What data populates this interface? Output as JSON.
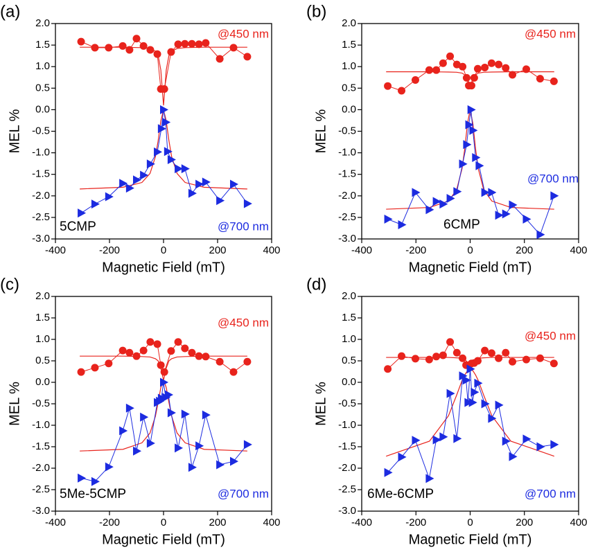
{
  "chart_data": [
    {
      "type": "line",
      "panel_label": "(a)",
      "sample_label": "5CMP",
      "xlabel": "Magnetic Field (mT)",
      "ylabel": "MEL %",
      "xlim": [
        -400,
        400
      ],
      "xticks": [
        -400,
        -200,
        0,
        200,
        400
      ],
      "ylim": [
        -3,
        2
      ],
      "yticks": [
        {
          "value": 2,
          "label": "2.0"
        },
        {
          "value": 1.5,
          "label": "1.5"
        },
        {
          "value": 1,
          "label": "1.0"
        },
        {
          "value": 0.5,
          "label": "0.5"
        },
        {
          "value": 0,
          "label": "0.0"
        },
        {
          "value": -0.5,
          "label": "-0.5"
        },
        {
          "value": -1,
          "label": "-1.0"
        },
        {
          "value": -1.5,
          "label": "-1.5"
        },
        {
          "value": -2,
          "label": "-2.0"
        },
        {
          "value": -2.5,
          "label": "-2.5"
        },
        {
          "value": -3,
          "label": "-3.0"
        }
      ],
      "series": [
        {
          "name": "@450 nm",
          "color": "#e8231c",
          "marker": "circle",
          "x": [
            -305,
            -254,
            -203,
            -151,
            -126,
            -100,
            -74,
            -49,
            -23,
            -10,
            3,
            28,
            54,
            79,
            105,
            131,
            156,
            208,
            259,
            310
          ],
          "values": [
            1.58,
            1.44,
            1.44,
            1.48,
            1.39,
            1.65,
            1.48,
            1.39,
            1.29,
            0.48,
            0.48,
            1.34,
            1.52,
            1.53,
            1.53,
            1.52,
            1.55,
            1.18,
            1.44,
            1.23
          ]
        },
        {
          "name": "@700 nm",
          "color": "#1c2be0",
          "marker": "triangle",
          "x": [
            -305,
            -254,
            -203,
            -151,
            -126,
            -100,
            -74,
            -49,
            -23,
            -8,
            0,
            8,
            15,
            28,
            54,
            79,
            105,
            131,
            156,
            208,
            259,
            310
          ],
          "values": [
            -2.4,
            -2.19,
            -2.02,
            -1.71,
            -1.82,
            -1.63,
            -1.52,
            -1.26,
            -0.98,
            -0.44,
            0,
            -0.29,
            -0.97,
            -1.16,
            -1.37,
            -1.37,
            -1.94,
            -1.73,
            -1.68,
            -2.11,
            -1.73,
            -2.18
          ]
        },
        {
          "color": "#e8231c",
          "marker": "none",
          "x": [
            -310,
            -150,
            -80,
            -50,
            -30,
            -20,
            -10,
            0,
            10,
            20,
            30,
            50,
            80,
            150,
            310
          ],
          "values": [
            1.45,
            1.45,
            1.44,
            1.42,
            1.36,
            1.26,
            0.92,
            0.1,
            0.92,
            1.26,
            1.36,
            1.42,
            1.44,
            1.45,
            1.45
          ]
        },
        {
          "color": "#e8231c",
          "marker": "none",
          "x": [
            -310,
            -150,
            -80,
            -50,
            -30,
            -20,
            -10,
            0,
            10,
            20,
            30,
            50,
            80,
            150,
            310
          ],
          "values": [
            -1.84,
            -1.8,
            -1.69,
            -1.48,
            -1.09,
            -0.72,
            -0.26,
            0,
            -0.26,
            -0.72,
            -1.09,
            -1.48,
            -1.69,
            -1.8,
            -1.84
          ]
        }
      ]
    },
    {
      "type": "line",
      "panel_label": "(b)",
      "sample_label": "6CMP",
      "xlabel": "Magnetic Field (mT)",
      "ylabel": "MEL %",
      "xlim": [
        -400,
        400
      ],
      "xticks": [
        -400,
        -200,
        0,
        200,
        400
      ],
      "ylim": [
        -3,
        2
      ],
      "yticks": [
        {
          "value": 2,
          "label": "2.0"
        },
        {
          "value": 1.5,
          "label": "1.5"
        },
        {
          "value": 1,
          "label": "1.0"
        },
        {
          "value": 0.5,
          "label": "0.5"
        },
        {
          "value": 0,
          "label": "0.0"
        },
        {
          "value": -0.5,
          "label": "-0.5"
        },
        {
          "value": -1,
          "label": "-1.0"
        },
        {
          "value": -1.5,
          "label": "-1.5"
        },
        {
          "value": -2,
          "label": "-2.0"
        },
        {
          "value": -2.5,
          "label": "-2.5"
        },
        {
          "value": -3,
          "label": "-3.0"
        }
      ],
      "series": [
        {
          "name": "@450 nm",
          "color": "#e8231c",
          "marker": "circle",
          "x": [
            -304,
            -253,
            -202,
            -151,
            -125,
            -100,
            -74,
            -49,
            -28,
            -13,
            -5,
            5,
            15,
            28,
            54,
            79,
            105,
            131,
            156,
            207,
            258,
            309
          ],
          "values": [
            0.55,
            0.44,
            0.69,
            0.92,
            0.92,
            1.08,
            1.24,
            1.05,
            1,
            0.74,
            0.56,
            0.56,
            0.74,
            0.95,
            0.98,
            1.08,
            1.05,
            0.97,
            0.81,
            0.94,
            0.72,
            0.66
          ]
        },
        {
          "name": "@700 nm",
          "color": "#1c2be0",
          "marker": "triangle",
          "x": [
            -304,
            -253,
            -202,
            -151,
            -125,
            -100,
            -74,
            -49,
            -28,
            -13,
            -5,
            3,
            10,
            20,
            33,
            54,
            79,
            105,
            131,
            156,
            207,
            258,
            309
          ],
          "values": [
            -2.54,
            -2.67,
            -1.92,
            -2.32,
            -2.13,
            -2.19,
            -2.06,
            -1.9,
            -1.26,
            -0.81,
            -0.35,
            0,
            -0.48,
            -1.11,
            -1.3,
            -1.92,
            -1.92,
            -2.45,
            -2.42,
            -2.21,
            -2.54,
            -2.9,
            -2
          ]
        },
        {
          "color": "#e8231c",
          "marker": "none",
          "x": [
            -310,
            -150,
            -80,
            -50,
            -30,
            -20,
            -10,
            0,
            10,
            20,
            30,
            50,
            80,
            150,
            310
          ],
          "values": [
            0.88,
            0.88,
            0.875,
            0.87,
            0.85,
            0.81,
            0.72,
            0.55,
            0.72,
            0.81,
            0.85,
            0.87,
            0.875,
            0.88,
            0.88
          ]
        },
        {
          "color": "#e8231c",
          "marker": "none",
          "x": [
            -310,
            -150,
            -80,
            -50,
            -30,
            -20,
            -10,
            0,
            10,
            20,
            30,
            50,
            80,
            150,
            310
          ],
          "values": [
            -2.31,
            -2.27,
            -2.12,
            -1.86,
            -1.37,
            -0.91,
            -0.32,
            0,
            -0.32,
            -0.91,
            -1.37,
            -1.86,
            -2.12,
            -2.27,
            -2.31
          ]
        }
      ]
    },
    {
      "type": "line",
      "panel_label": "(c)",
      "sample_label": "5Me-5CMP",
      "xlabel": "Magnetic Field (mT)",
      "ylabel": "MEL %",
      "xlim": [
        -400,
        400
      ],
      "xticks": [
        -400,
        -200,
        0,
        200,
        400
      ],
      "ylim": [
        -3,
        2
      ],
      "yticks": [
        {
          "value": 2,
          "label": "2.0"
        },
        {
          "value": 1.5,
          "label": "1.5"
        },
        {
          "value": 1,
          "label": "1.0"
        },
        {
          "value": 0.5,
          "label": "0.5"
        },
        {
          "value": 0,
          "label": "0.0"
        },
        {
          "value": -0.5,
          "label": "-0.5"
        },
        {
          "value": -1,
          "label": "-1.0"
        },
        {
          "value": -1.5,
          "label": "-1.5"
        },
        {
          "value": -2,
          "label": "-2.0"
        },
        {
          "value": -2.5,
          "label": "-2.5"
        },
        {
          "value": -3,
          "label": "-3.0"
        }
      ],
      "series": [
        {
          "name": "@450 nm",
          "color": "#e8231c",
          "marker": "circle",
          "x": [
            -305,
            -254,
            -203,
            -151,
            -126,
            -100,
            -74,
            -49,
            -23,
            -10,
            3,
            28,
            54,
            79,
            105,
            131,
            156,
            208,
            259,
            310
          ],
          "values": [
            0.24,
            0.34,
            0.44,
            0.74,
            0.69,
            0.61,
            0.74,
            0.94,
            0.89,
            0.4,
            0.24,
            0.73,
            0.94,
            0.79,
            0.69,
            0.61,
            0.6,
            0.48,
            0.24,
            0.48
          ]
        },
        {
          "name": "@700 nm",
          "color": "#1c2be0",
          "marker": "triangle",
          "x": [
            -305,
            -254,
            -203,
            -151,
            -126,
            -100,
            -74,
            -49,
            -23,
            -15,
            -8,
            0,
            8,
            18,
            28,
            54,
            79,
            105,
            131,
            156,
            208,
            259,
            310
          ],
          "values": [
            -2.23,
            -2.31,
            -1.97,
            -1.13,
            -0.6,
            -1.6,
            -0.81,
            -1.42,
            -0.47,
            -0.44,
            -0.37,
            0,
            -0.35,
            -0.29,
            -0.71,
            -1.53,
            -0.74,
            -1.98,
            -1.48,
            -0.76,
            -1.92,
            -1.84,
            -1.45
          ]
        },
        {
          "color": "#e8231c",
          "marker": "none",
          "x": [
            -310,
            -150,
            -80,
            -50,
            -30,
            -20,
            -10,
            0,
            10,
            20,
            30,
            50,
            80,
            150,
            310
          ],
          "values": [
            0.61,
            0.61,
            0.6,
            0.59,
            0.55,
            0.5,
            0.33,
            0.05,
            0.33,
            0.5,
            0.55,
            0.59,
            0.6,
            0.61,
            0.61
          ]
        },
        {
          "color": "#e8231c",
          "marker": "none",
          "x": [
            -310,
            -150,
            -80,
            -50,
            -30,
            -20,
            -10,
            0,
            10,
            20,
            30,
            50,
            80,
            150,
            310
          ],
          "values": [
            -1.6,
            -1.56,
            -1.41,
            -1.18,
            -0.79,
            -0.47,
            -0.12,
            0.05,
            -0.12,
            -0.47,
            -0.79,
            -1.18,
            -1.41,
            -1.56,
            -1.6
          ]
        }
      ]
    },
    {
      "type": "line",
      "panel_label": "(d)",
      "sample_label": "6Me-6CMP",
      "xlabel": "Magnetic Field (mT)",
      "ylabel": "MEL %",
      "xlim": [
        -400,
        400
      ],
      "xticks": [
        -400,
        -200,
        0,
        200,
        400
      ],
      "ylim": [
        -3,
        2
      ],
      "yticks": [
        {
          "value": 2,
          "label": "2.0"
        },
        {
          "value": 1.5,
          "label": "1.5"
        },
        {
          "value": 1,
          "label": "1.0"
        },
        {
          "value": 0.5,
          "label": "0.5"
        },
        {
          "value": 0,
          "label": "0.0"
        },
        {
          "value": -0.5,
          "label": "-0.5"
        },
        {
          "value": -1,
          "label": "-1.0"
        },
        {
          "value": -1.5,
          "label": "-1.5"
        },
        {
          "value": -2,
          "label": "-2.0"
        },
        {
          "value": -2.5,
          "label": "-2.5"
        },
        {
          "value": -3,
          "label": "-3.0"
        }
      ],
      "series": [
        {
          "name": "@450 nm",
          "color": "#e8231c",
          "marker": "circle",
          "x": [
            -304,
            -253,
            -202,
            -151,
            -125,
            -100,
            -74,
            -49,
            -28,
            -15,
            -5,
            5,
            15,
            28,
            54,
            79,
            105,
            131,
            156,
            207,
            258,
            309
          ],
          "values": [
            0.31,
            0.61,
            0.55,
            0.53,
            0.6,
            0.63,
            0.94,
            0.69,
            0.56,
            0.4,
            0.4,
            0.44,
            0.45,
            0.5,
            0.74,
            0.68,
            0.56,
            0.69,
            0.48,
            0.53,
            0.56,
            0.44
          ]
        },
        {
          "name": "@700 nm",
          "color": "#1c2be0",
          "marker": "triangle",
          "x": [
            -304,
            -253,
            -202,
            -151,
            -125,
            -100,
            -74,
            -49,
            -28,
            -15,
            -8,
            0,
            8,
            15,
            28,
            54,
            79,
            105,
            131,
            156,
            207,
            258,
            309
          ],
          "values": [
            -2.1,
            -1.74,
            -1.35,
            -2.24,
            -1.34,
            -1.27,
            -0.26,
            -1.31,
            0.15,
            0.05,
            -0.47,
            0.31,
            -0.47,
            -0.23,
            -0.02,
            -0.5,
            -0.84,
            -0.53,
            -1.37,
            -1.73,
            -1.32,
            -1.5,
            -1.45
          ]
        },
        {
          "color": "#e8231c",
          "marker": "none",
          "x": [
            -310,
            -150,
            -80,
            -50,
            -30,
            -20,
            -10,
            0,
            10,
            20,
            30,
            50,
            80,
            150,
            310
          ],
          "values": [
            0.58,
            0.58,
            0.58,
            0.57,
            0.56,
            0.53,
            0.47,
            0.35,
            0.47,
            0.53,
            0.56,
            0.57,
            0.58,
            0.58,
            0.58
          ]
        },
        {
          "color": "#e8231c",
          "marker": "none",
          "x": [
            -310,
            -150,
            -80,
            -50,
            -30,
            -20,
            -10,
            0,
            10,
            20,
            30,
            50,
            80,
            150,
            310
          ],
          "values": [
            -1.72,
            -1.37,
            -0.78,
            -0.3,
            0.04,
            0.17,
            0.27,
            0.3,
            0.27,
            0.17,
            0.04,
            -0.3,
            -0.78,
            -1.37,
            -1.72
          ]
        }
      ]
    }
  ]
}
